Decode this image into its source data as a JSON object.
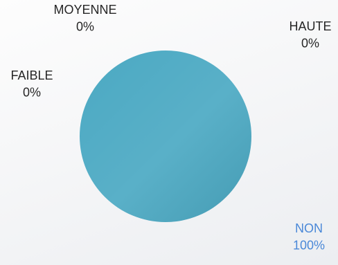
{
  "chart_data": {
    "type": "pie",
    "title": "",
    "slices": [
      {
        "label": "NON",
        "value": 100,
        "value_label": "100%",
        "color": "#4ba9c3",
        "label_color": "#4a88d8"
      },
      {
        "label": "HAUTE",
        "value": 0,
        "value_label": "0%",
        "color": "#2e75b6",
        "label_color": "#262626"
      },
      {
        "label": "MOYENNE",
        "value": 0,
        "value_label": "0%",
        "color": "#70ad47",
        "label_color": "#262626"
      },
      {
        "label": "FAIBLE",
        "value": 0,
        "value_label": "0%",
        "color": "#ffc000",
        "label_color": "#262626"
      }
    ]
  }
}
